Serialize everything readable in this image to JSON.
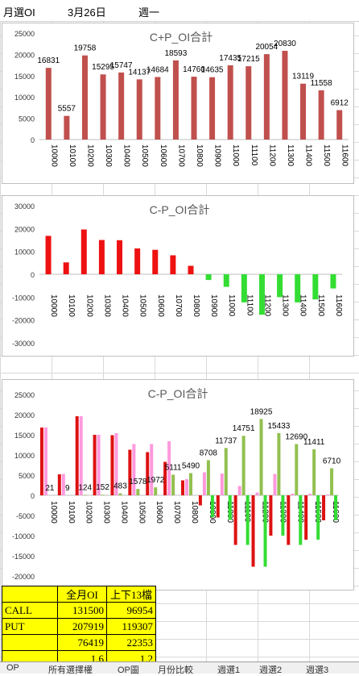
{
  "header": {
    "cell_a": "月選OI",
    "cell_b": "3月26日",
    "cell_c": "週一"
  },
  "chart_data": [
    {
      "type": "bar",
      "title": "C+P_OI合計",
      "categories": [
        "10000",
        "10100",
        "10200",
        "10300",
        "10400",
        "10500",
        "10600",
        "10700",
        "10800",
        "10900",
        "11000",
        "11100",
        "11200",
        "11300",
        "11400",
        "11500",
        "11600"
      ],
      "series": [
        {
          "values": [
            16831,
            5557,
            19758,
            15295,
            15747,
            14137,
            14684,
            18593,
            14760,
            14635,
            17435,
            17215,
            20054,
            20830,
            13119,
            11558,
            6912
          ]
        }
      ],
      "data_labels": [
        "16831",
        "5557",
        "19758",
        "15295",
        "15747",
        "14137",
        "14684",
        "18593",
        "14760",
        "14635",
        "17435",
        "17215",
        "20054",
        "20830",
        "13119",
        "11558",
        "6912"
      ],
      "ylim": [
        0,
        25000
      ],
      "yticks": [
        "25000",
        "20000",
        "15000",
        "10000",
        "5000",
        "0"
      ],
      "bar_color": "#c0504d"
    },
    {
      "type": "bar",
      "title": "C-P_OI合計",
      "categories": [
        "10000",
        "10100",
        "10200",
        "10300",
        "10400",
        "10500",
        "10600",
        "10700",
        "10800",
        "10900",
        "11000",
        "11100",
        "11200",
        "11300",
        "11400",
        "11500",
        "11600"
      ],
      "series": [
        {
          "values": [
            16800,
            5200,
            19600,
            15000,
            14900,
            11300,
            10700,
            8300,
            3700,
            -2500,
            -5500,
            -12300,
            -17700,
            -10000,
            -12300,
            -11000,
            -6200
          ]
        }
      ],
      "ylim": [
        -30000,
        30000
      ],
      "yticks": [
        "30000",
        "20000",
        "10000",
        "0",
        "-10000",
        "-20000",
        "-30000"
      ],
      "positive_color": "#ee1111",
      "negative_color": "#33dd33"
    },
    {
      "type": "bar",
      "title": "C-P_OI合計",
      "categories": [
        "10000",
        "10100",
        "10200",
        "10300",
        "10400",
        "10500",
        "10600",
        "10700",
        "10800",
        "10900",
        "11000",
        "11100",
        "11200",
        "11300",
        "11400",
        "11500",
        "11600"
      ],
      "series": [
        {
          "values": [
            16800,
            5200,
            19600,
            15000,
            14900,
            11300,
            10700,
            8300,
            3700,
            -2500,
            -5500,
            -12300,
            -17700,
            -10000,
            -12300,
            -11000,
            -6200
          ],
          "color": "#dd1111"
        },
        {
          "values": [
            16800,
            5300,
            19600,
            15000,
            15400,
            12700,
            12700,
            13400,
            4000,
            5700,
            5400,
            2300,
            700,
            5300,
            400,
            400,
            200
          ],
          "color": "#ff99dd"
        },
        {
          "values": [
            21,
            9,
            124,
            152,
            483,
            1578,
            1972,
            5111,
            5490,
            8708,
            11737,
            14751,
            18925,
            15433,
            12690,
            11411,
            6710
          ],
          "color": "#92c050"
        },
        {
          "values": [
            0,
            0,
            0,
            0,
            0,
            0,
            0,
            0,
            0,
            -5400,
            -6100,
            -12300,
            -17700,
            -10000,
            -12300,
            -11000,
            -6200
          ],
          "color": "#33dd33"
        }
      ],
      "data_labels": [
        "21",
        "9",
        "124",
        "152",
        "483",
        "1578",
        "1972",
        "5111",
        "5490",
        "8708",
        "11737",
        "14751",
        "18925",
        "15433",
        "12690",
        "11411",
        "6710"
      ],
      "ylim": [
        -20000,
        25000
      ],
      "yticks": [
        "25000",
        "20000",
        "15000",
        "10000",
        "5000",
        "0",
        "-5000",
        "-10000",
        "-15000",
        "-20000"
      ]
    }
  ],
  "summary_table": {
    "col1": "全月OI",
    "col2": "上下13檔",
    "rows": [
      {
        "label": "CALL",
        "v1": "131500",
        "v2": "96954"
      },
      {
        "label": "PUT",
        "v1": "207919",
        "v2": "119307"
      },
      {
        "label": "",
        "v1": "76419",
        "v2": "22353"
      },
      {
        "label": "",
        "v1": "1.6",
        "v2": "1.2"
      }
    ]
  },
  "sheet_tabs": [
    "OP",
    "所有選擇權",
    "OP圖",
    "月份比較",
    "週選1",
    "週選2",
    "週選3"
  ]
}
